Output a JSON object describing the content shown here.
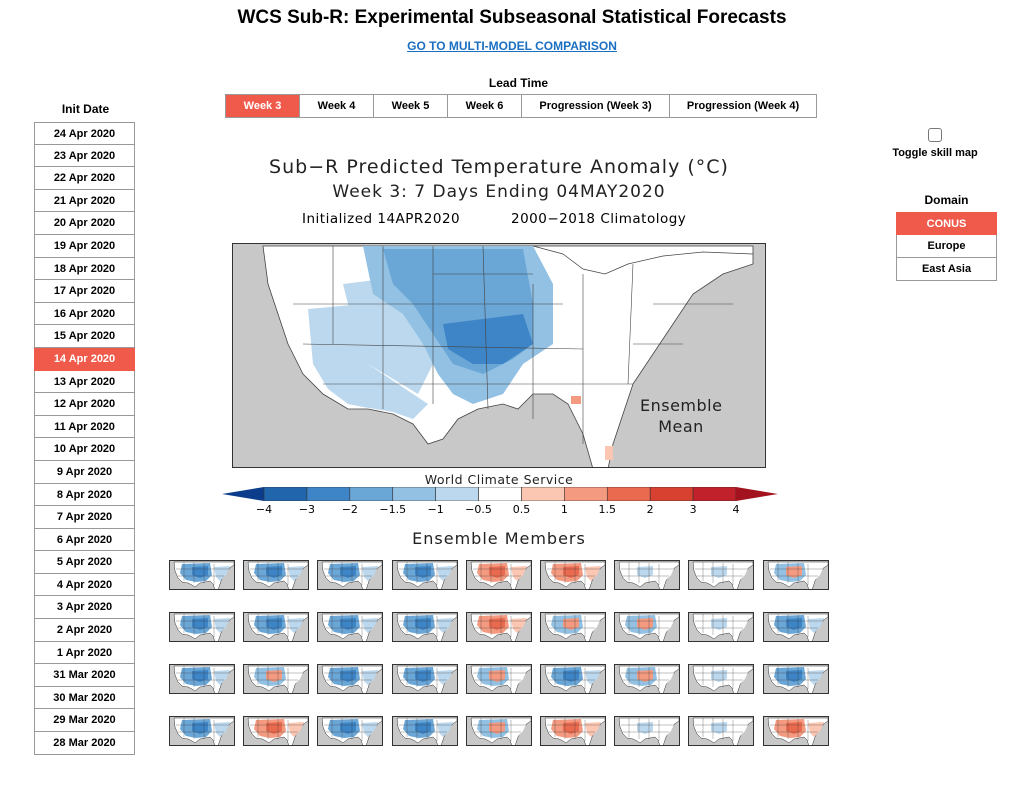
{
  "header": {
    "title": "WCS Sub-R: Experimental Subseasonal Statistical Forecasts",
    "link": "GO TO MULTI-MODEL COMPARISON"
  },
  "init_date": {
    "label": "Init Date",
    "selected": "14 Apr 2020",
    "items": [
      "24 Apr 2020",
      "23 Apr 2020",
      "22 Apr 2020",
      "21 Apr 2020",
      "20 Apr 2020",
      "19 Apr 2020",
      "18 Apr 2020",
      "17 Apr 2020",
      "16 Apr 2020",
      "15 Apr 2020",
      "14 Apr 2020",
      "13 Apr 2020",
      "12 Apr 2020",
      "11 Apr 2020",
      "10 Apr 2020",
      "9 Apr 2020",
      "8 Apr 2020",
      "7 Apr 2020",
      "6 Apr 2020",
      "5 Apr 2020",
      "4 Apr 2020",
      "3 Apr 2020",
      "2 Apr 2020",
      "1 Apr 2020",
      "31 Mar 2020",
      "30 Mar 2020",
      "29 Mar 2020",
      "28 Mar 2020"
    ]
  },
  "lead_time": {
    "label": "Lead Time",
    "selected": "Week 3",
    "tabs": [
      "Week 3",
      "Week 4",
      "Week 5",
      "Week 6",
      "Progression (Week 3)",
      "Progression (Week 4)"
    ]
  },
  "skill": {
    "label": "Toggle skill map",
    "checked": false
  },
  "domain": {
    "label": "Domain",
    "selected": "CONUS",
    "items": [
      "CONUS",
      "Europe",
      "East Asia"
    ]
  },
  "figure": {
    "title_line1": "Sub−R Predicted Temperature Anomaly (°C)",
    "title_line2": "Week 3: 7 Days Ending 04MAY2020",
    "initialized": "Initialized 14APR2020",
    "climatology": "2000−2018 Climatology",
    "map_label_line1": "Ensemble",
    "map_label_line2": "Mean",
    "colorbar_title": "World Climate Service",
    "colorbar_ticks": [
      "−4",
      "−3",
      "−2",
      "−1.5",
      "−1",
      "−0.5",
      "0.5",
      "1",
      "1.5",
      "2",
      "3",
      "4"
    ],
    "colorbar_colors": [
      "#2166ac",
      "#3d85c6",
      "#6aa6d6",
      "#93c1e3",
      "#bcd8ee",
      "#ffffff",
      "#fbc7b3",
      "#f49a80",
      "#ea6a4f",
      "#d8402f",
      "#c0212a"
    ],
    "ensemble_title": "Ensemble Members"
  },
  "ensemble_members": {
    "rows": 4,
    "cols": 9,
    "tints": [
      [
        "cool",
        "cool",
        "cool",
        "cool",
        "warm",
        "warm",
        "neutral",
        "neutral",
        "mixed"
      ],
      [
        "cool",
        "cool",
        "cool",
        "cool",
        "warm",
        "mixed",
        "mixed",
        "neutral",
        "cool"
      ],
      [
        "cool",
        "mixed",
        "cool",
        "cool",
        "mixed",
        "cool",
        "mixed",
        "neutral",
        "cool"
      ],
      [
        "cool",
        "warm",
        "cool",
        "cool",
        "mixed",
        "warm",
        "neutral",
        "neutral",
        "warm"
      ]
    ]
  }
}
